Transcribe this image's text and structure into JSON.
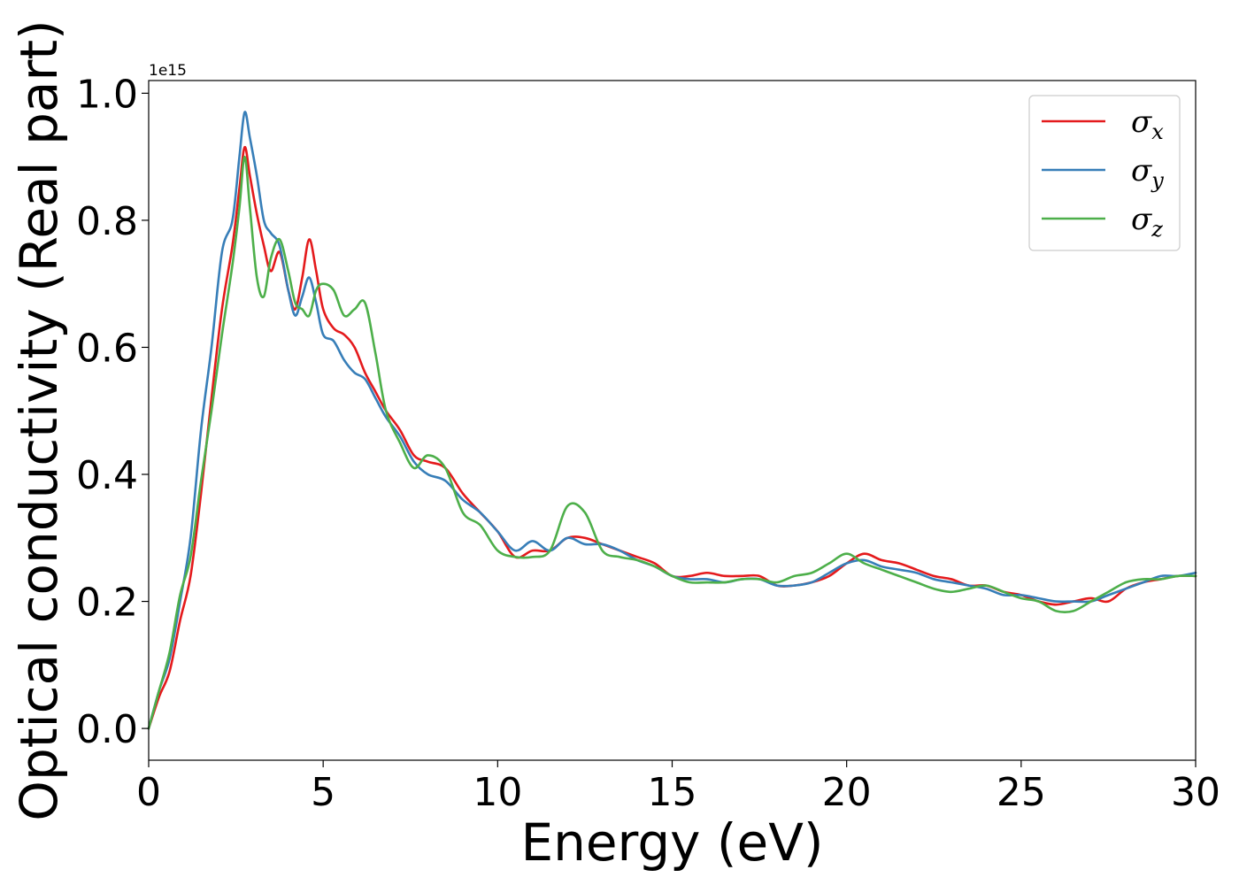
{
  "chart_data": {
    "type": "line",
    "xlabel": "Energy (eV)",
    "ylabel": "Optical conductivity (Real part)",
    "y_offset_label": "1e15",
    "xlim": [
      0,
      30
    ],
    "ylim": [
      -0.05,
      1.02
    ],
    "y_scale_factor": 1000000000000000.0,
    "xticks": [
      0,
      5,
      10,
      15,
      20,
      25,
      30
    ],
    "xtick_labels": [
      "0",
      "5",
      "10",
      "15",
      "20",
      "25",
      "30"
    ],
    "yticks": [
      0.0,
      0.2,
      0.4,
      0.6,
      0.8,
      1.0
    ],
    "ytick_labels": [
      "0.0",
      "0.2",
      "0.4",
      "0.6",
      "0.8",
      "1.0"
    ],
    "grid": false,
    "legend_position": "top-right",
    "series": [
      {
        "name": "σx",
        "symbol": "σ",
        "subscript": "x",
        "color": "#e41a1c",
        "x": [
          0,
          0.3,
          0.6,
          0.9,
          1.2,
          1.5,
          1.8,
          2.1,
          2.4,
          2.6,
          2.75,
          2.9,
          3.1,
          3.3,
          3.5,
          3.75,
          4.0,
          4.2,
          4.4,
          4.6,
          4.8,
          5.0,
          5.3,
          5.6,
          5.9,
          6.2,
          6.5,
          6.8,
          7.2,
          7.6,
          8.0,
          8.5,
          9.0,
          9.5,
          10.0,
          10.5,
          11.0,
          11.5,
          12.0,
          12.5,
          13.0,
          13.5,
          14.0,
          14.5,
          15.0,
          15.5,
          16.0,
          16.5,
          17.0,
          17.5,
          18.0,
          18.5,
          19.0,
          19.5,
          20.0,
          20.5,
          21.0,
          21.5,
          22.0,
          22.5,
          23.0,
          23.5,
          24.0,
          24.5,
          25.0,
          25.5,
          26.0,
          26.5,
          27.0,
          27.5,
          28.0,
          28.5,
          29.0,
          29.5,
          30.0
        ],
        "y": [
          0.0,
          0.05,
          0.09,
          0.17,
          0.24,
          0.37,
          0.52,
          0.66,
          0.76,
          0.85,
          0.915,
          0.87,
          0.81,
          0.76,
          0.72,
          0.75,
          0.69,
          0.66,
          0.71,
          0.77,
          0.72,
          0.66,
          0.63,
          0.62,
          0.6,
          0.56,
          0.53,
          0.5,
          0.47,
          0.43,
          0.42,
          0.41,
          0.37,
          0.34,
          0.31,
          0.27,
          0.28,
          0.28,
          0.3,
          0.3,
          0.29,
          0.28,
          0.27,
          0.26,
          0.24,
          0.24,
          0.245,
          0.24,
          0.24,
          0.24,
          0.225,
          0.225,
          0.23,
          0.24,
          0.26,
          0.275,
          0.265,
          0.26,
          0.25,
          0.24,
          0.235,
          0.225,
          0.225,
          0.215,
          0.21,
          0.2,
          0.195,
          0.2,
          0.205,
          0.2,
          0.22,
          0.23,
          0.235,
          0.24,
          0.24
        ]
      },
      {
        "name": "σy",
        "symbol": "σ",
        "subscript": "y",
        "color": "#377eb8",
        "x": [
          0,
          0.3,
          0.6,
          0.9,
          1.2,
          1.5,
          1.8,
          2.1,
          2.4,
          2.6,
          2.75,
          2.9,
          3.1,
          3.3,
          3.5,
          3.75,
          4.0,
          4.2,
          4.4,
          4.6,
          4.8,
          5.0,
          5.3,
          5.6,
          5.9,
          6.2,
          6.5,
          6.8,
          7.2,
          7.6,
          8.0,
          8.5,
          9.0,
          9.5,
          10.0,
          10.5,
          11.0,
          11.5,
          12.0,
          12.5,
          13.0,
          13.5,
          14.0,
          14.5,
          15.0,
          15.5,
          16.0,
          16.5,
          17.0,
          17.5,
          18.0,
          18.5,
          19.0,
          19.5,
          20.0,
          20.5,
          21.0,
          21.5,
          22.0,
          22.5,
          23.0,
          23.5,
          24.0,
          24.5,
          25.0,
          25.5,
          26.0,
          26.5,
          27.0,
          27.5,
          28.0,
          28.5,
          29.0,
          29.5,
          30.0
        ],
        "y": [
          0.0,
          0.06,
          0.11,
          0.2,
          0.3,
          0.47,
          0.6,
          0.75,
          0.8,
          0.9,
          0.97,
          0.93,
          0.87,
          0.8,
          0.78,
          0.76,
          0.69,
          0.65,
          0.68,
          0.71,
          0.67,
          0.62,
          0.61,
          0.58,
          0.56,
          0.55,
          0.52,
          0.49,
          0.46,
          0.42,
          0.4,
          0.39,
          0.36,
          0.34,
          0.31,
          0.28,
          0.295,
          0.28,
          0.3,
          0.29,
          0.29,
          0.28,
          0.265,
          0.255,
          0.24,
          0.235,
          0.235,
          0.23,
          0.235,
          0.235,
          0.225,
          0.225,
          0.23,
          0.245,
          0.26,
          0.265,
          0.255,
          0.25,
          0.245,
          0.235,
          0.23,
          0.225,
          0.22,
          0.21,
          0.21,
          0.205,
          0.2,
          0.2,
          0.2,
          0.21,
          0.22,
          0.23,
          0.24,
          0.24,
          0.245
        ]
      },
      {
        "name": "σz",
        "symbol": "σ",
        "subscript": "z",
        "color": "#4daf4a",
        "x": [
          0,
          0.3,
          0.6,
          0.9,
          1.2,
          1.5,
          1.8,
          2.1,
          2.4,
          2.6,
          2.75,
          2.9,
          3.1,
          3.3,
          3.5,
          3.75,
          4.0,
          4.2,
          4.4,
          4.6,
          4.8,
          5.0,
          5.3,
          5.6,
          5.9,
          6.2,
          6.5,
          6.8,
          7.2,
          7.6,
          8.0,
          8.5,
          9.0,
          9.5,
          10.0,
          10.5,
          11.0,
          11.5,
          12.0,
          12.5,
          13.0,
          13.5,
          14.0,
          14.5,
          15.0,
          15.5,
          16.0,
          16.5,
          17.0,
          17.5,
          18.0,
          18.5,
          19.0,
          19.5,
          20.0,
          20.5,
          21.0,
          21.5,
          22.0,
          22.5,
          23.0,
          23.5,
          24.0,
          24.5,
          25.0,
          25.5,
          26.0,
          26.5,
          27.0,
          27.5,
          28.0,
          28.5,
          29.0,
          29.5,
          30.0
        ],
        "y": [
          0.0,
          0.06,
          0.12,
          0.21,
          0.27,
          0.39,
          0.5,
          0.62,
          0.73,
          0.82,
          0.9,
          0.82,
          0.71,
          0.68,
          0.74,
          0.77,
          0.72,
          0.67,
          0.66,
          0.65,
          0.69,
          0.7,
          0.69,
          0.65,
          0.66,
          0.67,
          0.59,
          0.5,
          0.45,
          0.41,
          0.43,
          0.41,
          0.34,
          0.32,
          0.28,
          0.27,
          0.27,
          0.28,
          0.35,
          0.34,
          0.28,
          0.27,
          0.265,
          0.255,
          0.24,
          0.23,
          0.23,
          0.23,
          0.235,
          0.235,
          0.23,
          0.24,
          0.245,
          0.26,
          0.275,
          0.26,
          0.25,
          0.24,
          0.23,
          0.22,
          0.215,
          0.22,
          0.225,
          0.215,
          0.205,
          0.2,
          0.185,
          0.185,
          0.2,
          0.215,
          0.23,
          0.235,
          0.235,
          0.24,
          0.24
        ]
      }
    ]
  }
}
